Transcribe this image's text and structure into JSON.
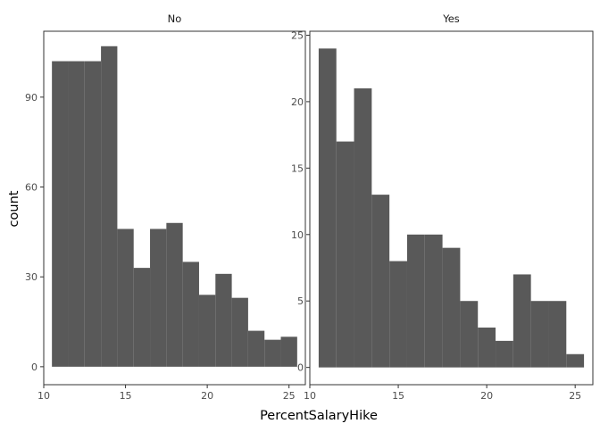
{
  "colors": {
    "bar": "#595959",
    "background": "#ffffff",
    "panel_border": "#333333",
    "axis_text": "#4d4d4d"
  },
  "chart_data": {
    "type": "bar",
    "subtype": "faceted-histogram",
    "xlabel": "PercentSalaryHike",
    "ylabel": "count",
    "grid": false,
    "bin_width": 1,
    "xlim": [
      10,
      26
    ],
    "x_ticks": [
      10,
      15,
      20,
      25
    ],
    "panels": [
      {
        "facet": "No",
        "ylim": [
          -6,
          112
        ],
        "y_ticks": [
          0,
          30,
          60,
          90
        ],
        "bins": [
          {
            "x": 11,
            "count": 102
          },
          {
            "x": 12,
            "count": 102
          },
          {
            "x": 13,
            "count": 102
          },
          {
            "x": 14,
            "count": 107
          },
          {
            "x": 15,
            "count": 46
          },
          {
            "x": 16,
            "count": 33
          },
          {
            "x": 17,
            "count": 46
          },
          {
            "x": 18,
            "count": 48
          },
          {
            "x": 19,
            "count": 35
          },
          {
            "x": 20,
            "count": 24
          },
          {
            "x": 21,
            "count": 31
          },
          {
            "x": 22,
            "count": 23
          },
          {
            "x": 23,
            "count": 12
          },
          {
            "x": 24,
            "count": 9
          },
          {
            "x": 25,
            "count": 10
          }
        ]
      },
      {
        "facet": "Yes",
        "ylim": [
          -1.3,
          25.3
        ],
        "y_ticks": [
          0,
          5,
          10,
          15,
          20,
          25
        ],
        "bins": [
          {
            "x": 11,
            "count": 24
          },
          {
            "x": 12,
            "count": 17
          },
          {
            "x": 13,
            "count": 21
          },
          {
            "x": 14,
            "count": 13
          },
          {
            "x": 15,
            "count": 8
          },
          {
            "x": 16,
            "count": 10
          },
          {
            "x": 17,
            "count": 10
          },
          {
            "x": 18,
            "count": 9
          },
          {
            "x": 19,
            "count": 5
          },
          {
            "x": 20,
            "count": 3
          },
          {
            "x": 21,
            "count": 2
          },
          {
            "x": 22,
            "count": 7
          },
          {
            "x": 23,
            "count": 5
          },
          {
            "x": 24,
            "count": 5
          },
          {
            "x": 25,
            "count": 1
          }
        ]
      }
    ]
  }
}
